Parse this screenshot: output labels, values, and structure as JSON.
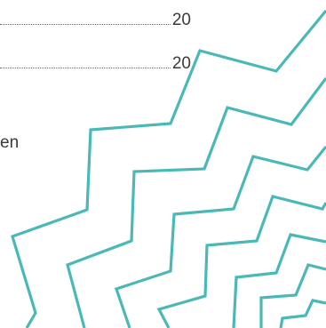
{
  "toc": [
    {
      "page": "20"
    },
    {
      "page": "20"
    }
  ],
  "text_fragment": "en",
  "decoration": {
    "name": "zigzag-lines",
    "color": "#4bb8b8"
  }
}
